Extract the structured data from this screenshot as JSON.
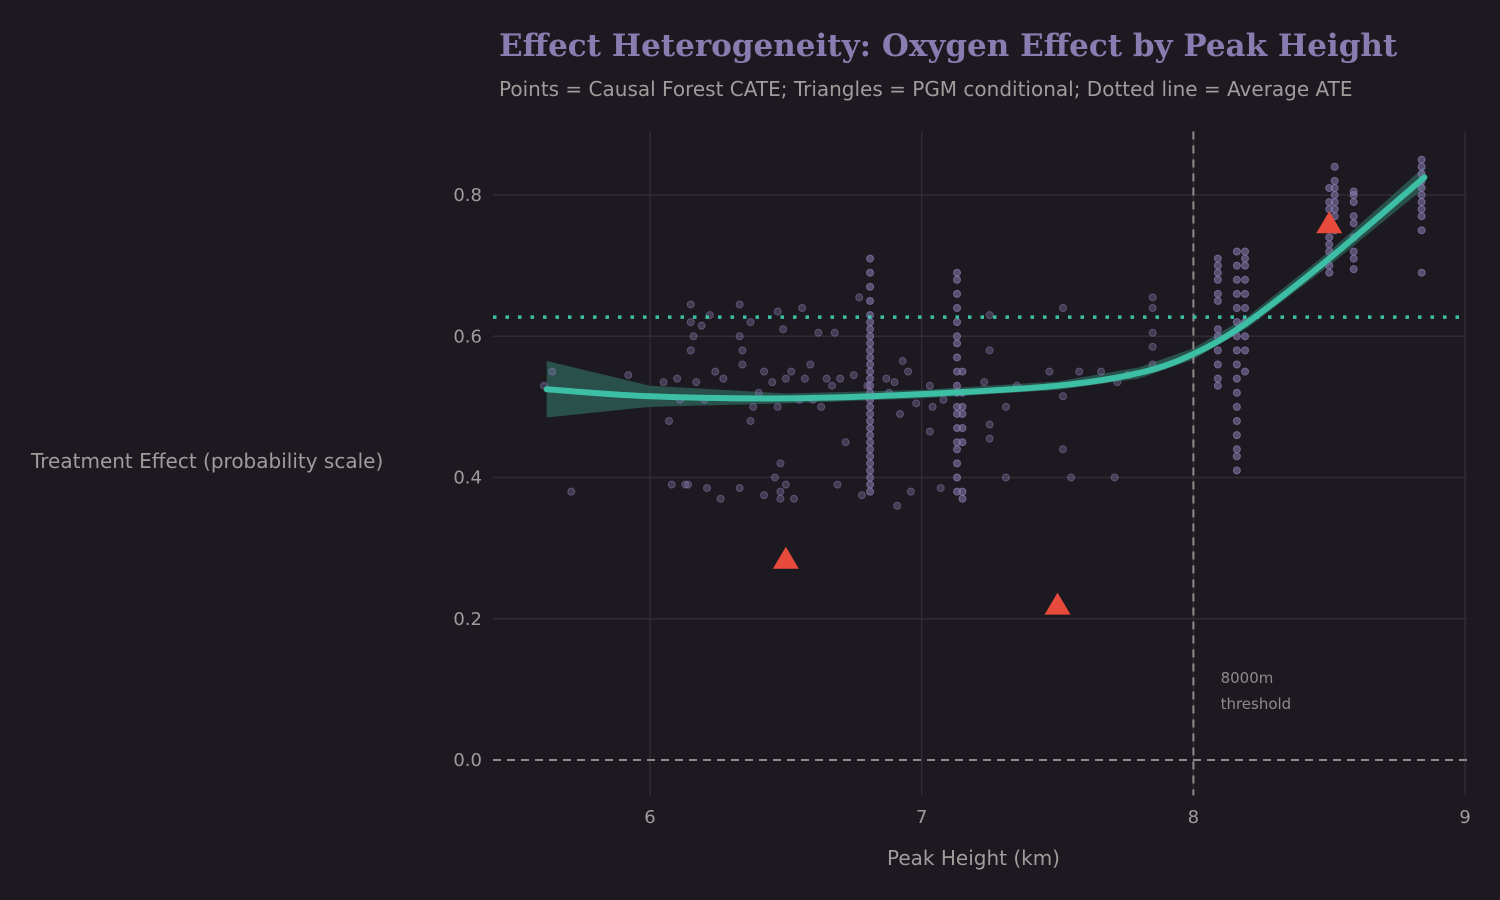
{
  "chart_data": {
    "type": "scatter",
    "title": "Effect Heterogeneity: Oxygen Effect by Peak Height",
    "subtitle": "Points = Causal Forest CATE; Triangles = PGM conditional; Dotted line = Average ATE",
    "xlabel": "Peak Height (km)",
    "ylabel": "Treatment Effect (probability scale)",
    "xlim": [
      5.42,
      9.0
    ],
    "ylim": [
      -0.05,
      0.89
    ],
    "xticks": [
      6,
      7,
      8,
      9
    ],
    "yticks": [
      0.0,
      0.2,
      0.4,
      0.6,
      0.8
    ],
    "ytick_labels": [
      "0.0",
      "0.2",
      "0.4",
      "0.6",
      "0.8"
    ],
    "grid": true,
    "colors": {
      "background": "#1c1a20",
      "grid": "#2f2d33",
      "points": "#8a7bb0",
      "smooth": "#3dbfa5",
      "band": "#2b5a52",
      "triangles": "#e84a3c",
      "ate": "#3dbfa5",
      "reference": "#8f8b8b"
    },
    "cate_points_scattered": [
      [
        5.61,
        0.53
      ],
      [
        5.64,
        0.55
      ],
      [
        5.71,
        0.38
      ],
      [
        5.92,
        0.545
      ],
      [
        6.05,
        0.535
      ],
      [
        6.07,
        0.48
      ],
      [
        6.08,
        0.39
      ],
      [
        6.1,
        0.54
      ],
      [
        6.11,
        0.51
      ],
      [
        6.13,
        0.39
      ],
      [
        6.14,
        0.39
      ],
      [
        6.15,
        0.58
      ],
      [
        6.15,
        0.62
      ],
      [
        6.15,
        0.645
      ],
      [
        6.16,
        0.6
      ],
      [
        6.17,
        0.535
      ],
      [
        6.19,
        0.615
      ],
      [
        6.2,
        0.51
      ],
      [
        6.21,
        0.385
      ],
      [
        6.22,
        0.63
      ],
      [
        6.24,
        0.55
      ],
      [
        6.26,
        0.37
      ],
      [
        6.27,
        0.54
      ],
      [
        6.33,
        0.385
      ],
      [
        6.33,
        0.6
      ],
      [
        6.33,
        0.645
      ],
      [
        6.34,
        0.56
      ],
      [
        6.34,
        0.58
      ],
      [
        6.37,
        0.48
      ],
      [
        6.37,
        0.62
      ],
      [
        6.38,
        0.5
      ],
      [
        6.4,
        0.52
      ],
      [
        6.42,
        0.55
      ],
      [
        6.42,
        0.375
      ],
      [
        6.45,
        0.535
      ],
      [
        6.46,
        0.4
      ],
      [
        6.47,
        0.5
      ],
      [
        6.47,
        0.635
      ],
      [
        6.48,
        0.42
      ],
      [
        6.48,
        0.37
      ],
      [
        6.48,
        0.38
      ],
      [
        6.49,
        0.61
      ],
      [
        6.5,
        0.39
      ],
      [
        6.5,
        0.54
      ],
      [
        6.52,
        0.55
      ],
      [
        6.53,
        0.37
      ],
      [
        6.55,
        0.51
      ],
      [
        6.56,
        0.64
      ],
      [
        6.57,
        0.54
      ],
      [
        6.59,
        0.56
      ],
      [
        6.6,
        0.51
      ],
      [
        6.62,
        0.605
      ],
      [
        6.63,
        0.5
      ],
      [
        6.65,
        0.54
      ],
      [
        6.67,
        0.53
      ],
      [
        6.68,
        0.605
      ],
      [
        6.69,
        0.39
      ],
      [
        6.7,
        0.54
      ],
      [
        6.72,
        0.45
      ],
      [
        6.75,
        0.545
      ],
      [
        6.77,
        0.655
      ],
      [
        6.78,
        0.375
      ],
      [
        6.8,
        0.53
      ],
      [
        6.87,
        0.54
      ],
      [
        6.88,
        0.52
      ],
      [
        6.9,
        0.535
      ],
      [
        6.91,
        0.36
      ],
      [
        6.92,
        0.49
      ],
      [
        6.93,
        0.565
      ],
      [
        6.95,
        0.55
      ],
      [
        6.96,
        0.38
      ],
      [
        6.98,
        0.505
      ],
      [
        7.03,
        0.53
      ],
      [
        7.03,
        0.465
      ],
      [
        7.04,
        0.5
      ],
      [
        7.07,
        0.385
      ],
      [
        7.08,
        0.51
      ],
      [
        7.23,
        0.535
      ],
      [
        7.25,
        0.63
      ],
      [
        7.25,
        0.58
      ],
      [
        7.25,
        0.455
      ],
      [
        7.25,
        0.475
      ],
      [
        7.31,
        0.4
      ],
      [
        7.31,
        0.5
      ],
      [
        7.35,
        0.53
      ],
      [
        7.47,
        0.55
      ],
      [
        7.52,
        0.44
      ],
      [
        7.52,
        0.64
      ],
      [
        7.52,
        0.515
      ],
      [
        7.55,
        0.4
      ],
      [
        7.58,
        0.55
      ],
      [
        7.66,
        0.55
      ],
      [
        7.71,
        0.4
      ],
      [
        7.72,
        0.535
      ],
      [
        7.76,
        0.545
      ],
      [
        7.85,
        0.605
      ],
      [
        7.85,
        0.585
      ],
      [
        7.85,
        0.56
      ],
      [
        7.85,
        0.655
      ],
      [
        7.85,
        0.64
      ]
    ],
    "cate_point_columns": [
      {
        "x": 6.81,
        "y": [
          0.38,
          0.39,
          0.4,
          0.41,
          0.42,
          0.43,
          0.44,
          0.45,
          0.46,
          0.47,
          0.48,
          0.49,
          0.5,
          0.51,
          0.52,
          0.53,
          0.54,
          0.55,
          0.56,
          0.57,
          0.58,
          0.59,
          0.6,
          0.61,
          0.62,
          0.63,
          0.65,
          0.67,
          0.69,
          0.71
        ]
      },
      {
        "x": 7.13,
        "y": [
          0.38,
          0.4,
          0.42,
          0.44,
          0.45,
          0.47,
          0.49,
          0.5,
          0.52,
          0.53,
          0.55,
          0.57,
          0.59,
          0.6,
          0.62,
          0.64,
          0.66,
          0.68,
          0.69
        ]
      },
      {
        "x": 7.15,
        "y": [
          0.37,
          0.38,
          0.45,
          0.47,
          0.49,
          0.5,
          0.52,
          0.55
        ]
      },
      {
        "x": 8.09,
        "y": [
          0.53,
          0.54,
          0.56,
          0.58,
          0.6,
          0.61,
          0.65,
          0.66,
          0.68,
          0.69,
          0.7,
          0.71
        ]
      },
      {
        "x": 8.16,
        "y": [
          0.41,
          0.43,
          0.44,
          0.46,
          0.48,
          0.5,
          0.52,
          0.54,
          0.56,
          0.58,
          0.6,
          0.62,
          0.64,
          0.66,
          0.68,
          0.7,
          0.72
        ]
      },
      {
        "x": 8.19,
        "y": [
          0.55,
          0.58,
          0.6,
          0.62,
          0.64,
          0.66,
          0.68,
          0.7,
          0.71,
          0.72
        ]
      },
      {
        "x": 8.5,
        "y": [
          0.69,
          0.7,
          0.72,
          0.73,
          0.74,
          0.78,
          0.79,
          0.81
        ]
      },
      {
        "x": 8.52,
        "y": [
          0.75,
          0.77,
          0.78,
          0.79,
          0.8,
          0.81,
          0.82,
          0.84
        ]
      },
      {
        "x": 8.59,
        "y": [
          0.695,
          0.71,
          0.72,
          0.74,
          0.76,
          0.77,
          0.79,
          0.8,
          0.805
        ]
      },
      {
        "x": 8.84,
        "y": [
          0.69,
          0.75,
          0.77,
          0.78,
          0.79,
          0.8,
          0.81,
          0.82,
          0.83,
          0.84,
          0.85
        ]
      }
    ],
    "smooth_fit": {
      "x": [
        5.62,
        6.0,
        6.5,
        7.0,
        7.5,
        7.8,
        8.0,
        8.2,
        8.5,
        8.85
      ],
      "y": [
        0.525,
        0.515,
        0.512,
        0.518,
        0.53,
        0.548,
        0.575,
        0.62,
        0.71,
        0.825
      ],
      "lower": [
        0.485,
        0.5,
        0.505,
        0.512,
        0.524,
        0.54,
        0.567,
        0.612,
        0.7,
        0.81
      ],
      "upper": [
        0.565,
        0.53,
        0.519,
        0.524,
        0.536,
        0.556,
        0.583,
        0.628,
        0.72,
        0.84
      ]
    },
    "pgm_conditional": {
      "x": [
        6.5,
        7.5,
        8.5
      ],
      "y": [
        0.285,
        0.22,
        0.76
      ]
    },
    "average_ate": 0.627,
    "reference_line_y": 0.0,
    "threshold_x": 8.0,
    "annotation": [
      "8000m",
      "threshold"
    ]
  }
}
